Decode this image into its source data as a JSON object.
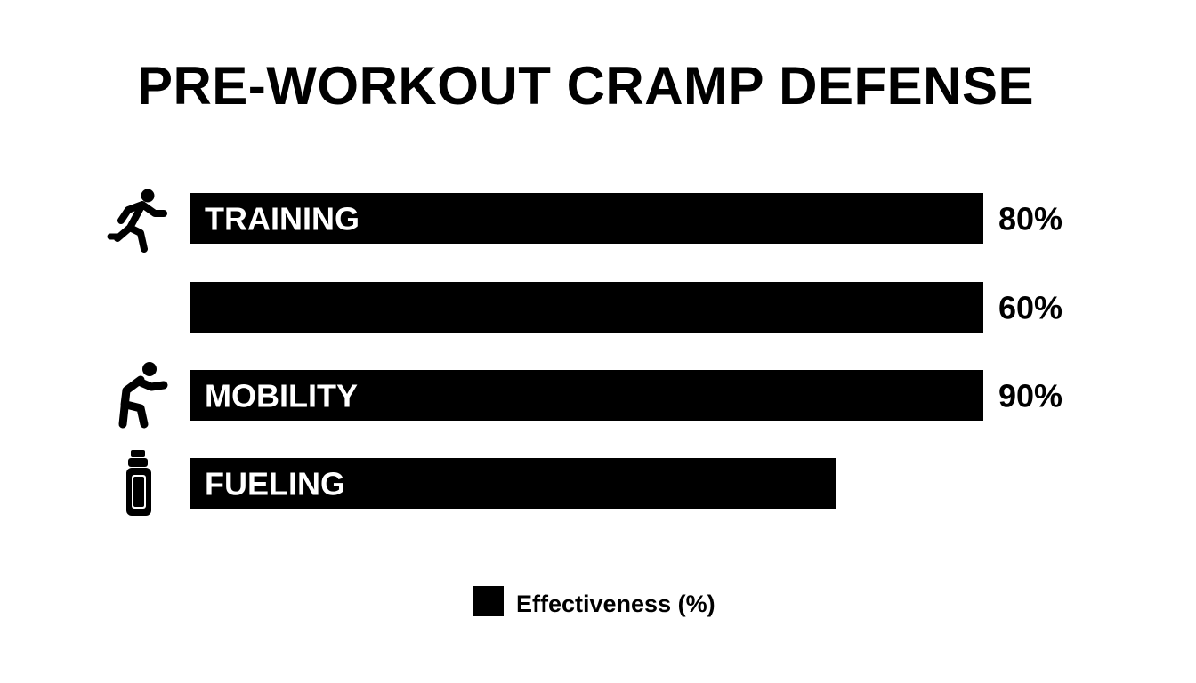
{
  "chart_data": {
    "type": "bar",
    "orientation": "horizontal",
    "title": "PRE-WORKOUT CRAMP DEFENSE",
    "categories": [
      "TRAINING",
      "",
      "MOBILITY",
      "FUELING"
    ],
    "series": [
      {
        "name": "Effectiveness (%)",
        "values": [
          80,
          60,
          90,
          null
        ],
        "value_labels": [
          "80%",
          "60%",
          "90%",
          ""
        ]
      }
    ],
    "icons": [
      "running-person-icon",
      "",
      "stretching-person-icon",
      "water-bottle-icon"
    ],
    "bar_color": "#000000",
    "legend": {
      "entries": [
        "Effectiveness (%)"
      ],
      "placement": "bottom-center"
    },
    "grid": false
  }
}
